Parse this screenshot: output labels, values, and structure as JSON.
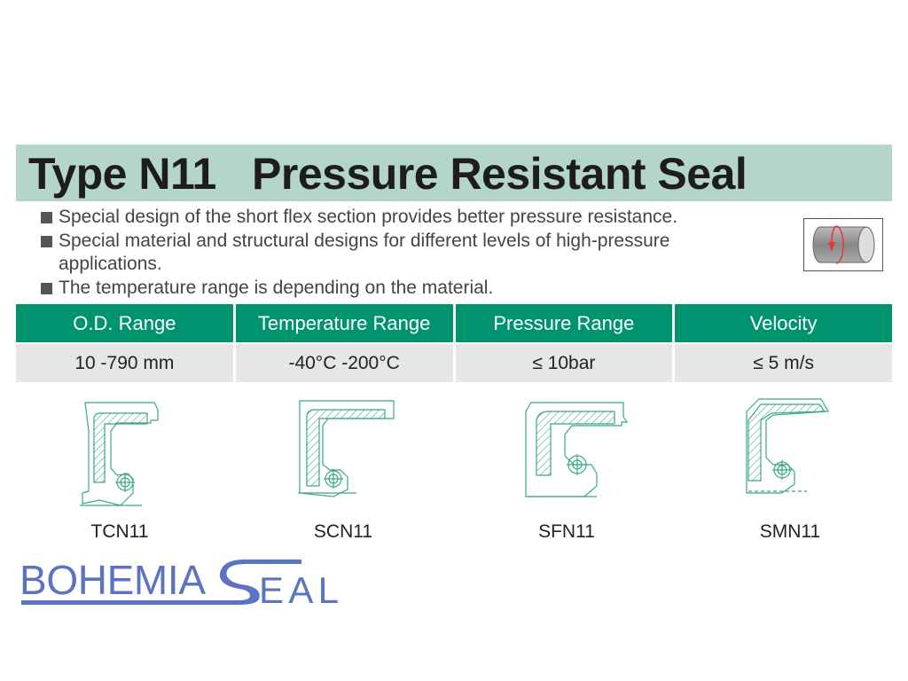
{
  "header": {
    "title": "Type N11   Pressure Resistant Seal"
  },
  "bullets": [
    "Special design of the short flex section provides better pressure resistance.",
    "Special material and structural designs for different levels of high-pressure applications.",
    "The temperature range is depending on the material."
  ],
  "motion_icon": "rotating-shaft-icon",
  "table": {
    "headers": [
      "O.D. Range",
      "Temperature Range",
      "Pressure Range",
      "Velocity"
    ],
    "values": [
      "10 -790 mm",
      "-40°C -200°C",
      "≤ 10bar",
      "≤ 5 m/s"
    ]
  },
  "seals": [
    {
      "label": "TCN11"
    },
    {
      "label": "SCN11"
    },
    {
      "label": "SFN11"
    },
    {
      "label": "SMN11"
    }
  ],
  "watermark": {
    "text": "BOHEMIA SEAL"
  },
  "colors": {
    "band": "#b4d5cb",
    "table_header": "#00936f",
    "table_row": "#e6e6e6",
    "drawing": "#3aa885",
    "watermark": "#5b73c0"
  }
}
